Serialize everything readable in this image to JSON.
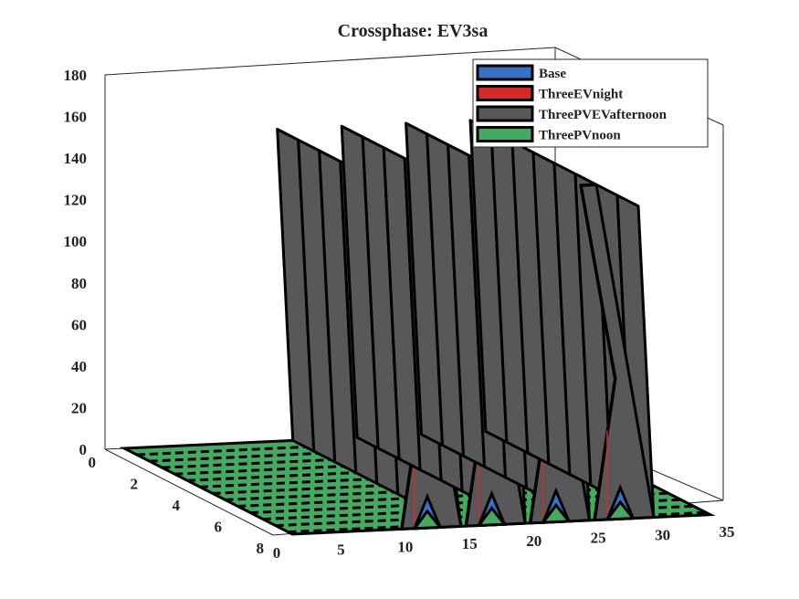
{
  "chart_data": {
    "type": "surface",
    "title": "Crossphase: EV3sa",
    "xlabel": "",
    "ylabel": "",
    "zlabel": "",
    "x_ticks": [
      "0",
      "5",
      "10",
      "15",
      "20",
      "25",
      "30",
      "35"
    ],
    "y_ticks": [
      "0",
      "2",
      "4",
      "6",
      "8"
    ],
    "z_ticks": [
      "0",
      "20",
      "40",
      "60",
      "80",
      "100",
      "120",
      "140",
      "160",
      "180"
    ],
    "xlim": [
      0,
      35
    ],
    "ylim": [
      0,
      8
    ],
    "zlim": [
      0,
      180
    ],
    "legend_position": "top-right",
    "series": [
      {
        "name": "Base",
        "color": "#3b6fc4",
        "x": [
          12,
          17,
          22,
          27
        ],
        "peak": 15
      },
      {
        "name": "ThreeEVnight",
        "color": "#d42a2a",
        "x": [
          12,
          17,
          22,
          27
        ],
        "peak": 0
      },
      {
        "name": "ThreePVEVafternoon",
        "color": "#58585b",
        "x": [
          10,
          15,
          20,
          25
        ],
        "peak": 150
      },
      {
        "name": "ThreePVnoon",
        "color": "#47a862",
        "x": [
          12,
          17,
          22,
          27
        ],
        "peak": 8
      }
    ]
  }
}
